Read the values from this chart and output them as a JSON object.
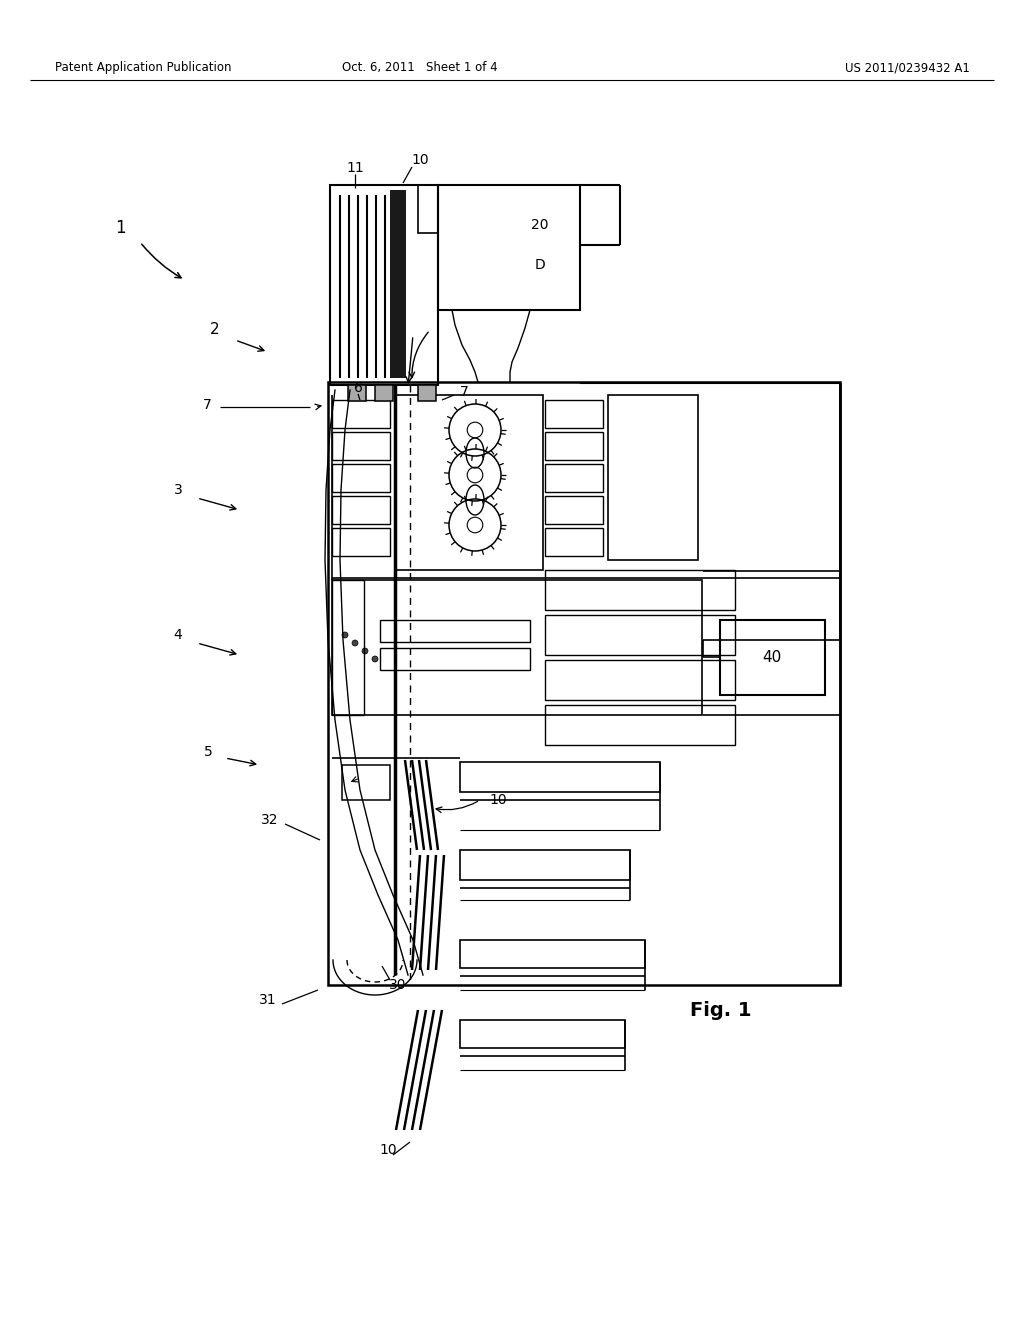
{
  "header_left": "Patent Application Publication",
  "header_center": "Oct. 6, 2011   Sheet 1 of 4",
  "header_right": "US 2011/0239432 A1",
  "fig_label": "Fig. 1",
  "background_color": "#ffffff",
  "line_color": "#000000",
  "text_color": "#000000"
}
